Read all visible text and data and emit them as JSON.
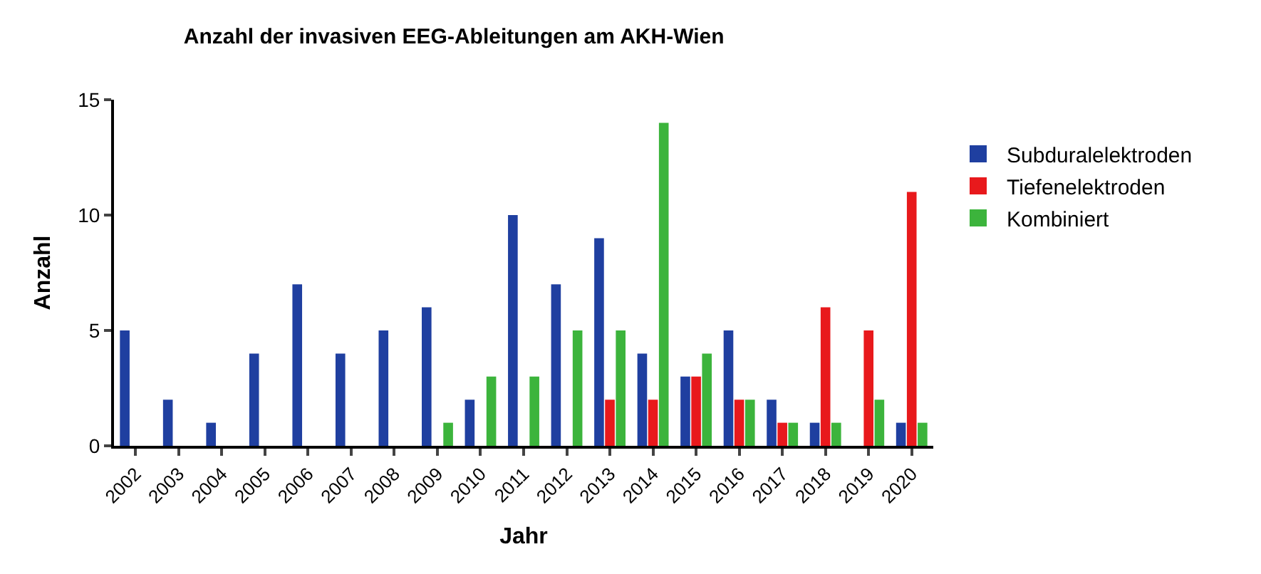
{
  "chart_data": {
    "type": "bar",
    "title": "Anzahl der invasiven EEG-Ableitungen am AKH-Wien",
    "xlabel": "Jahr",
    "ylabel": "Anzahl",
    "categories": [
      "2002",
      "2003",
      "2004",
      "2005",
      "2006",
      "2007",
      "2008",
      "2009",
      "2010",
      "2011",
      "2012",
      "2013",
      "2014",
      "2015",
      "2016",
      "2017",
      "2018",
      "2019",
      "2020"
    ],
    "series": [
      {
        "name": "Subduralelektroden",
        "color": "#1f3fa0",
        "values": [
          5,
          2,
          1,
          4,
          7,
          4,
          5,
          6,
          2,
          10,
          7,
          9,
          4,
          3,
          5,
          2,
          1,
          null,
          1
        ]
      },
      {
        "name": "Tiefenelektroden",
        "color": "#e8191c",
        "values": [
          null,
          null,
          null,
          null,
          null,
          null,
          null,
          null,
          null,
          null,
          null,
          2,
          2,
          3,
          2,
          1,
          6,
          5,
          11
        ]
      },
      {
        "name": "Kombiniert",
        "color": "#3cb43c",
        "values": [
          null,
          null,
          null,
          null,
          null,
          null,
          null,
          1,
          3,
          3,
          5,
          5,
          14,
          4,
          2,
          1,
          1,
          2,
          1
        ]
      }
    ],
    "ylim": [
      0,
      15
    ],
    "yticks": [
      0,
      5,
      10,
      15
    ],
    "legend": "right"
  }
}
